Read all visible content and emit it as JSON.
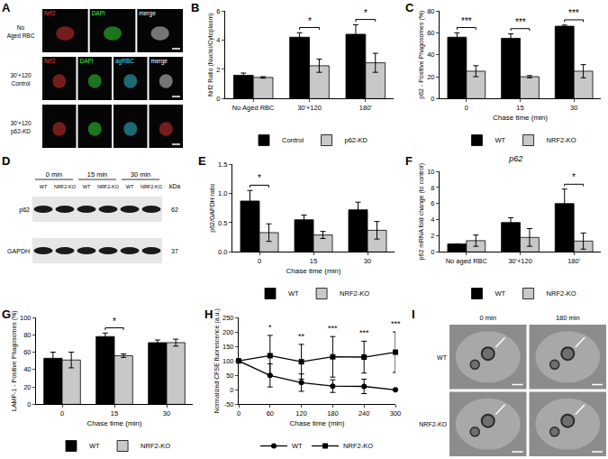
{
  "chart_data": [
    {
      "panel": "B",
      "type": "bar",
      "y_label": "Nrf2 Ratio (Nuclei/Cytoplasm)",
      "categories": [
        "No Aged RBC",
        "30'+120",
        "180'"
      ],
      "series": [
        {
          "name": "Control",
          "color": "#000000",
          "values": [
            1.6,
            4.2,
            4.4
          ],
          "errors": [
            0.15,
            0.3,
            0.65
          ]
        },
        {
          "name": "p62-KD",
          "color": "#c8c8c8",
          "values": [
            1.45,
            2.25,
            2.45
          ],
          "errors": [
            0.05,
            0.45,
            0.65
          ]
        }
      ],
      "ylim": [
        0,
        6
      ],
      "yticks": [
        0,
        2,
        4,
        6
      ],
      "grid": false,
      "legend": "bottom",
      "annotations": [
        {
          "at": "30'+120",
          "text": "*"
        },
        {
          "at": "180'",
          "text": "*"
        }
      ]
    },
    {
      "panel": "C",
      "type": "bar",
      "y_label": "p62 - Positive Phagosomes (%)",
      "x_label": "Chase time (min)",
      "categories": [
        "0",
        "15",
        "30"
      ],
      "series": [
        {
          "name": "WT",
          "color": "#000000",
          "values": [
            56,
            55,
            66
          ],
          "errors": [
            4,
            4,
            1
          ]
        },
        {
          "name": "NRF2-KO",
          "color": "#c8c8c8",
          "values": [
            25,
            20,
            25
          ],
          "errors": [
            5,
            1,
            6
          ]
        }
      ],
      "ylim": [
        0,
        80
      ],
      "yticks": [
        0,
        20,
        40,
        60,
        80
      ],
      "grid": false,
      "legend": "bottom",
      "annotations": [
        {
          "at": "0",
          "text": "***"
        },
        {
          "at": "15",
          "text": "***"
        },
        {
          "at": "30",
          "text": "***"
        }
      ]
    },
    {
      "panel": "E",
      "type": "bar",
      "y_label": "p62/GAPDH ratio",
      "x_label": "Chase time (min)",
      "categories": [
        "0",
        "15",
        "30"
      ],
      "series": [
        {
          "name": "WT",
          "color": "#000000",
          "values": [
            0.87,
            0.55,
            0.72
          ],
          "errors": [
            0.18,
            0.08,
            0.13
          ]
        },
        {
          "name": "NRF2-KO",
          "color": "#c8c8c8",
          "values": [
            0.33,
            0.29,
            0.37
          ],
          "errors": [
            0.15,
            0.06,
            0.15
          ]
        }
      ],
      "ylim": [
        0,
        1.5
      ],
      "yticks": [
        {
          "value": 0,
          "label": "0.0"
        },
        0.5,
        {
          "value": 1,
          "label": "1.0"
        },
        1.5
      ],
      "grid": false,
      "legend": "bottom",
      "annotations": [
        {
          "at": "0",
          "text": "*"
        }
      ]
    },
    {
      "panel": "F",
      "type": "bar",
      "title": "p62",
      "y_label": "p62 mRNA fold change (to control)",
      "categories": [
        "No aged RBC",
        "30'+120",
        "180'"
      ],
      "series": [
        {
          "name": "WT",
          "color": "#000000",
          "values": [
            1.0,
            3.65,
            6.0
          ],
          "errors": [
            0,
            0.6,
            1.8
          ]
        },
        {
          "name": "NRF2-KO",
          "color": "#c8c8c8",
          "values": [
            1.4,
            1.8,
            1.35
          ],
          "errors": [
            0.7,
            1.1,
            1.0
          ]
        }
      ],
      "ylim": [
        0,
        10
      ],
      "yticks": [
        0,
        2,
        4,
        6,
        8,
        10
      ],
      "grid": false,
      "legend": "bottom",
      "annotations": [
        {
          "at": "180'",
          "text": "*"
        }
      ]
    },
    {
      "panel": "G",
      "type": "bar",
      "y_label": "LAMP-1 - Positive Phagosomes (%)",
      "x_label": "Chase time (min)",
      "categories": [
        "0",
        "15",
        "30"
      ],
      "series": [
        {
          "name": "WT",
          "color": "#000000",
          "values": [
            53,
            78,
            71
          ],
          "errors": [
            7,
            4,
            3
          ]
        },
        {
          "name": "NRF2-KO",
          "color": "#c8c8c8",
          "values": [
            51,
            56,
            71
          ],
          "errors": [
            9,
            2,
            4
          ]
        }
      ],
      "ylim": [
        0,
        100
      ],
      "yticks": [
        0,
        20,
        40,
        60,
        80,
        100
      ],
      "grid": false,
      "legend": "bottom",
      "annotations": [
        {
          "at": "15",
          "text": "*"
        }
      ]
    },
    {
      "panel": "H",
      "type": "line",
      "y_label": "Normalized CFSE fluorescence (a.u.)",
      "x_label": "Chase time (min)",
      "x": [
        0,
        60,
        120,
        180,
        240,
        300
      ],
      "series": [
        {
          "name": "WT",
          "color": "#000000",
          "marker": "circle",
          "values": [
            100,
            50,
            25,
            13,
            12,
            0
          ],
          "errors": [
            0,
            40,
            30,
            22,
            25,
            0
          ]
        },
        {
          "name": "NRF2-KO",
          "color": "#000000",
          "marker": "square",
          "values": [
            100,
            118,
            97,
            114,
            113,
            130
          ],
          "errors": [
            0,
            70,
            60,
            70,
            55,
            70
          ]
        }
      ],
      "xlim": [
        0,
        300
      ],
      "xticks": [
        0,
        60,
        120,
        180,
        240,
        300
      ],
      "ylim": [
        -50,
        250
      ],
      "yticks": [
        -50,
        0,
        50,
        100,
        150,
        200,
        250
      ],
      "grid": false,
      "legend": "bottom",
      "annotations": [
        {
          "at": 60,
          "text": "*"
        },
        {
          "at": 120,
          "text": "**"
        },
        {
          "at": 180,
          "text": "***"
        },
        {
          "at": 240,
          "text": "***"
        },
        {
          "at": 300,
          "text": "***"
        }
      ]
    }
  ],
  "image_panels": {
    "A": {
      "panel": "A",
      "rows": [
        {
          "label": [
            "No",
            "Aged RBC"
          ],
          "channels": [
            {
              "text": "Nrf2",
              "color": "#ff3b3b"
            },
            {
              "text": "DAPI",
              "color": "#3bff3b"
            },
            {
              "text": "merge",
              "color": "#ffffff"
            }
          ]
        },
        {
          "label": [
            "30'+120",
            "Control"
          ],
          "channels": [
            {
              "text": "Nrf2",
              "color": "#ff3b3b"
            },
            {
              "text": "DAPI",
              "color": "#3bff3b"
            },
            {
              "text": "agRBC",
              "color": "#3be6ff"
            },
            {
              "text": "merge",
              "color": "#ffffff"
            }
          ]
        },
        {
          "label": [
            "30'+120",
            "p62-KD"
          ],
          "channels": []
        }
      ]
    },
    "D": {
      "panel": "D",
      "times": [
        "0 min",
        "15 min",
        "30 min"
      ],
      "lanes": [
        "WT",
        "NRF2-KO"
      ],
      "rows": [
        {
          "label": "p62",
          "kda": 62
        },
        {
          "label": "GAPDH",
          "kda": 37
        }
      ],
      "unit": "kDa"
    },
    "I": {
      "panel": "I",
      "columns": [
        "0 min",
        "180 min"
      ],
      "rows": [
        "WT",
        "NRF2-KO"
      ]
    }
  }
}
